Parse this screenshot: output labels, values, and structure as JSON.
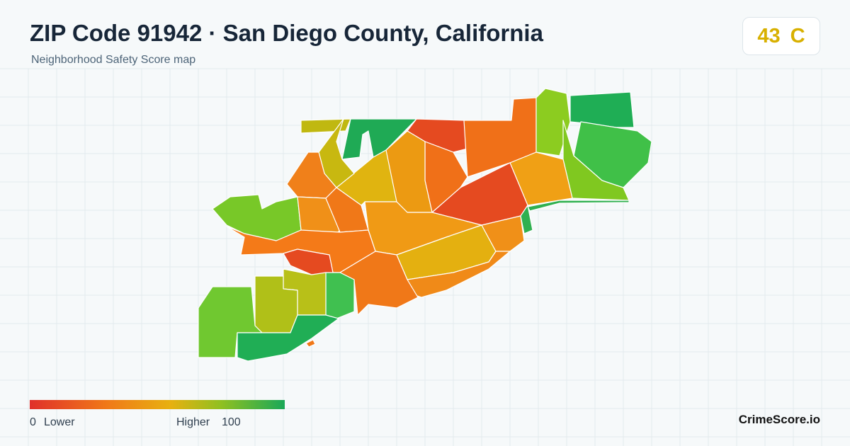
{
  "header": {
    "title": "ZIP Code 91942 · San Diego County, California",
    "subtitle": "Neighborhood Safety Score map"
  },
  "score": {
    "value": 43,
    "grade": "C"
  },
  "legend": {
    "min": 0,
    "min_label": "Lower",
    "max_label": "Higher",
    "max": 100
  },
  "brand": "CrimeScore.io"
}
